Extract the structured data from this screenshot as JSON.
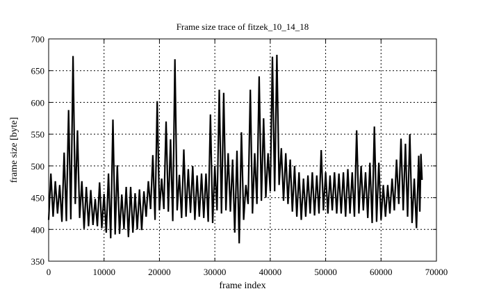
{
  "chart_data": {
    "type": "line",
    "title": "Frame size trace of fitzek_10_14_18",
    "xlabel": "frame index",
    "ylabel": "frame size [byte]",
    "xlim": [
      0,
      70000
    ],
    "ylim": [
      350,
      700
    ],
    "xticks": [
      0,
      10000,
      20000,
      30000,
      40000,
      50000,
      60000,
      70000
    ],
    "yticks": [
      350,
      400,
      450,
      500,
      550,
      600,
      650,
      700
    ],
    "grid": true,
    "grid_style": "dotted",
    "line_color": "#000000",
    "points": [
      [
        0,
        415
      ],
      [
        400,
        488
      ],
      [
        800,
        420
      ],
      [
        1200,
        476
      ],
      [
        1600,
        425
      ],
      [
        2000,
        470
      ],
      [
        2400,
        412
      ],
      [
        2800,
        521
      ],
      [
        3200,
        413
      ],
      [
        3600,
        588
      ],
      [
        4000,
        416
      ],
      [
        4400,
        673
      ],
      [
        4800,
        440
      ],
      [
        5200,
        556
      ],
      [
        5600,
        418
      ],
      [
        6000,
        476
      ],
      [
        6400,
        401
      ],
      [
        6800,
        467
      ],
      [
        7200,
        405
      ],
      [
        7600,
        462
      ],
      [
        8000,
        407
      ],
      [
        8400,
        448
      ],
      [
        8800,
        405
      ],
      [
        9200,
        474
      ],
      [
        9600,
        402
      ],
      [
        10000,
        456
      ],
      [
        10400,
        395
      ],
      [
        10800,
        488
      ],
      [
        11200,
        386
      ],
      [
        11600,
        573
      ],
      [
        12000,
        392
      ],
      [
        12400,
        501
      ],
      [
        12800,
        393
      ],
      [
        13200,
        455
      ],
      [
        13600,
        400
      ],
      [
        14000,
        467
      ],
      [
        14400,
        388
      ],
      [
        14800,
        467
      ],
      [
        15200,
        395
      ],
      [
        15600,
        457
      ],
      [
        16000,
        400
      ],
      [
        16400,
        463
      ],
      [
        16800,
        399
      ],
      [
        17200,
        460
      ],
      [
        17600,
        420
      ],
      [
        18000,
        476
      ],
      [
        18400,
        432
      ],
      [
        18800,
        517
      ],
      [
        19200,
        415
      ],
      [
        19600,
        602
      ],
      [
        20000,
        430
      ],
      [
        20400,
        480
      ],
      [
        20800,
        432
      ],
      [
        21200,
        570
      ],
      [
        21600,
        428
      ],
      [
        22000,
        542
      ],
      [
        22400,
        413
      ],
      [
        22800,
        668
      ],
      [
        23200,
        430
      ],
      [
        23600,
        486
      ],
      [
        24000,
        418
      ],
      [
        24400,
        526
      ],
      [
        24800,
        420
      ],
      [
        25200,
        495
      ],
      [
        25600,
        426
      ],
      [
        26000,
        500
      ],
      [
        26400,
        415
      ],
      [
        26800,
        485
      ],
      [
        27200,
        420
      ],
      [
        27600,
        488
      ],
      [
        28000,
        418
      ],
      [
        28400,
        488
      ],
      [
        28800,
        412
      ],
      [
        29200,
        581
      ],
      [
        29600,
        410
      ],
      [
        30000,
        500
      ],
      [
        30400,
        430
      ],
      [
        30800,
        620
      ],
      [
        31200,
        425
      ],
      [
        31600,
        615
      ],
      [
        32000,
        430
      ],
      [
        32400,
        520
      ],
      [
        32800,
        428
      ],
      [
        33200,
        510
      ],
      [
        33600,
        395
      ],
      [
        34000,
        524
      ],
      [
        34400,
        378
      ],
      [
        34800,
        553
      ],
      [
        35200,
        415
      ],
      [
        35600,
        470
      ],
      [
        36000,
        440
      ],
      [
        36400,
        620
      ],
      [
        36800,
        425
      ],
      [
        37200,
        520
      ],
      [
        37600,
        440
      ],
      [
        38000,
        641
      ],
      [
        38400,
        445
      ],
      [
        38800,
        575
      ],
      [
        39200,
        450
      ],
      [
        39600,
        520
      ],
      [
        40000,
        460
      ],
      [
        40400,
        672
      ],
      [
        40800,
        460
      ],
      [
        41200,
        675
      ],
      [
        41600,
        470
      ],
      [
        42000,
        528
      ],
      [
        42400,
        445
      ],
      [
        42800,
        520
      ],
      [
        43200,
        440
      ],
      [
        43600,
        510
      ],
      [
        44000,
        428
      ],
      [
        44400,
        500
      ],
      [
        44800,
        420
      ],
      [
        45200,
        490
      ],
      [
        45600,
        415
      ],
      [
        46000,
        480
      ],
      [
        46400,
        420
      ],
      [
        46800,
        485
      ],
      [
        47200,
        425
      ],
      [
        47600,
        490
      ],
      [
        48000,
        422
      ],
      [
        48400,
        485
      ],
      [
        48800,
        425
      ],
      [
        49200,
        525
      ],
      [
        49600,
        430
      ],
      [
        50000,
        490
      ],
      [
        50400,
        425
      ],
      [
        50800,
        485
      ],
      [
        51200,
        430
      ],
      [
        51600,
        490
      ],
      [
        52000,
        425
      ],
      [
        52400,
        488
      ],
      [
        52800,
        425
      ],
      [
        53200,
        490
      ],
      [
        53600,
        420
      ],
      [
        54000,
        495
      ],
      [
        54400,
        425
      ],
      [
        54800,
        490
      ],
      [
        55200,
        420
      ],
      [
        55600,
        556
      ],
      [
        56000,
        425
      ],
      [
        56400,
        500
      ],
      [
        56800,
        430
      ],
      [
        57200,
        490
      ],
      [
        57600,
        418
      ],
      [
        58000,
        505
      ],
      [
        58400,
        410
      ],
      [
        58800,
        562
      ],
      [
        59200,
        412
      ],
      [
        59600,
        505
      ],
      [
        60000,
        415
      ],
      [
        60400,
        470
      ],
      [
        60800,
        420
      ],
      [
        61200,
        470
      ],
      [
        61600,
        425
      ],
      [
        62000,
        480
      ],
      [
        62400,
        430
      ],
      [
        62800,
        510
      ],
      [
        63200,
        440
      ],
      [
        63600,
        543
      ],
      [
        64000,
        430
      ],
      [
        64400,
        535
      ],
      [
        64800,
        420
      ],
      [
        65200,
        550
      ],
      [
        65600,
        410
      ],
      [
        66000,
        480
      ],
      [
        66400,
        402
      ],
      [
        66800,
        516
      ],
      [
        67000,
        428
      ],
      [
        67200,
        519
      ],
      [
        67400,
        478
      ]
    ]
  }
}
